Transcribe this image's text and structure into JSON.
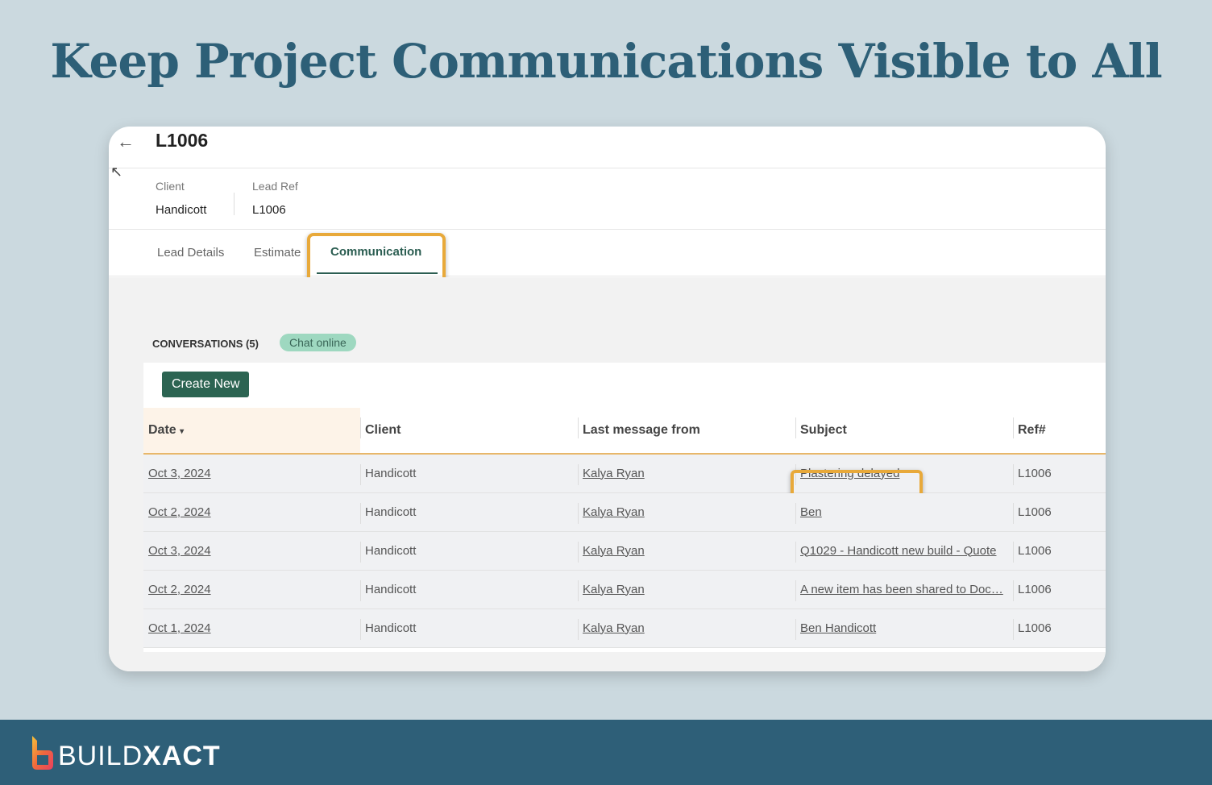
{
  "headline": "Keep Project Communications Visible to All",
  "header": {
    "title": "L1006"
  },
  "info": {
    "client_label": "Client",
    "client_value": "Handicott",
    "ref_label": "Lead Ref",
    "ref_value": "L1006"
  },
  "tabs": [
    {
      "label": "Lead Details"
    },
    {
      "label": "Estimate"
    },
    {
      "label": "Communication",
      "active": true
    }
  ],
  "conversations": {
    "label": "CONVERSATIONS (5)",
    "badge": "Chat online",
    "create_label": "Create New"
  },
  "table": {
    "columns": [
      "Date",
      "Client",
      "Last message from",
      "Subject",
      "Ref#"
    ],
    "rows": [
      [
        "Oct 3, 2024",
        "Handicott",
        "Kalya Ryan",
        "Plastering delayed",
        "L1006"
      ],
      [
        "Oct 2, 2024",
        "Handicott",
        "Kalya Ryan",
        "Ben",
        "L1006"
      ],
      [
        "Oct 3, 2024",
        "Handicott",
        "Kalya Ryan",
        "Q1029 - Handicott new build - Quote",
        "L1006"
      ],
      [
        "Oct 2, 2024",
        "Handicott",
        "Kalya Ryan",
        "A new item has been shared to Doc…",
        "L1006"
      ],
      [
        "Oct 1, 2024",
        "Handicott",
        "Kalya Ryan",
        "Ben Handicott",
        "L1006"
      ]
    ]
  },
  "footer": {
    "brand_light": "BUILD",
    "brand_bold": "XACT"
  },
  "colors": {
    "accent": "#2c6452",
    "highlight": "#e8a93a",
    "headline": "#2d5f77",
    "footer": "#2e5f78"
  }
}
